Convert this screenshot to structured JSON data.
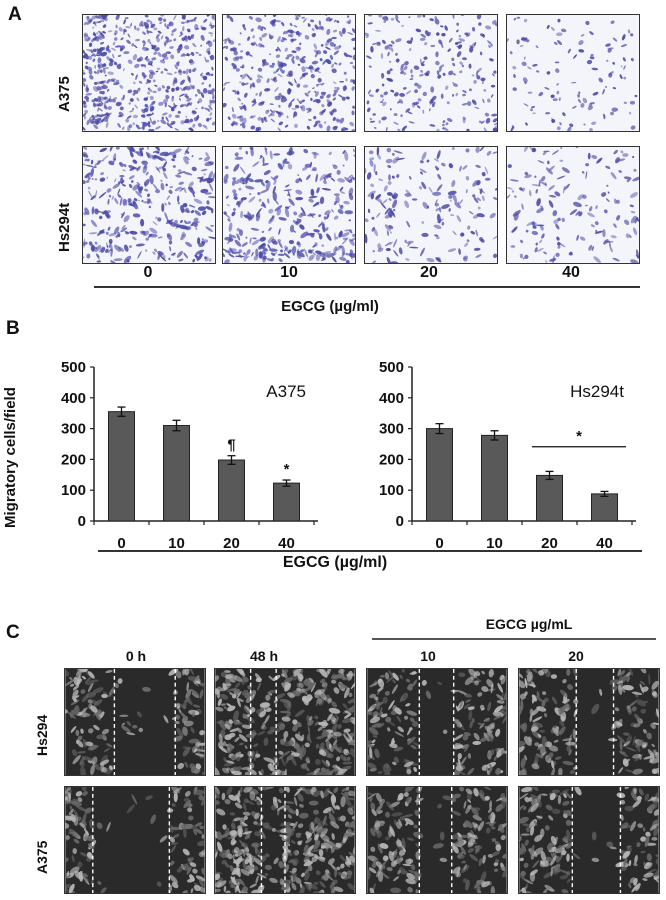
{
  "panel_a": {
    "letter": "A",
    "rows": [
      "A375",
      "Hs294t"
    ],
    "concentrations": [
      "0",
      "10",
      "20",
      "40"
    ],
    "xlabel": "EGCG (µg/ml)",
    "stain_color": "#4b4aa8"
  },
  "panel_b": {
    "letter": "B",
    "xlabel": "EGCG (µg/ml)"
  },
  "chart_data": [
    {
      "type": "bar",
      "title": "A375",
      "categories": [
        "0",
        "10",
        "20",
        "40"
      ],
      "values": [
        355,
        310,
        198,
        123
      ],
      "errors": [
        15,
        17,
        14,
        10
      ],
      "annotations": [
        "",
        "",
        "¶",
        "*"
      ],
      "ylabel": "Migratory cells/field",
      "xlabel": "EGCG (µg/ml)",
      "ylim": [
        0,
        500
      ],
      "yticks": [
        0,
        100,
        200,
        300,
        400,
        500
      ],
      "bar_color": "#595959"
    },
    {
      "type": "bar",
      "title": "Hs294t",
      "categories": [
        "0",
        "10",
        "20",
        "40"
      ],
      "values": [
        300,
        278,
        148,
        88
      ],
      "errors": [
        16,
        15,
        13,
        8
      ],
      "annotations": [
        "",
        "",
        "",
        ""
      ],
      "significance_bracket": {
        "from": "20",
        "to": "40",
        "label": "*"
      },
      "ylabel": "",
      "xlabel": "EGCG (µg/ml)",
      "ylim": [
        0,
        500
      ],
      "yticks": [
        0,
        100,
        200,
        300,
        400,
        500
      ],
      "bar_color": "#595959"
    }
  ],
  "panel_c": {
    "letter": "C",
    "columns": [
      "0 h",
      "48 h",
      "10",
      "20"
    ],
    "treatment_header": "EGCG µg/mL",
    "rows": [
      "Hs294",
      "A375"
    ]
  }
}
